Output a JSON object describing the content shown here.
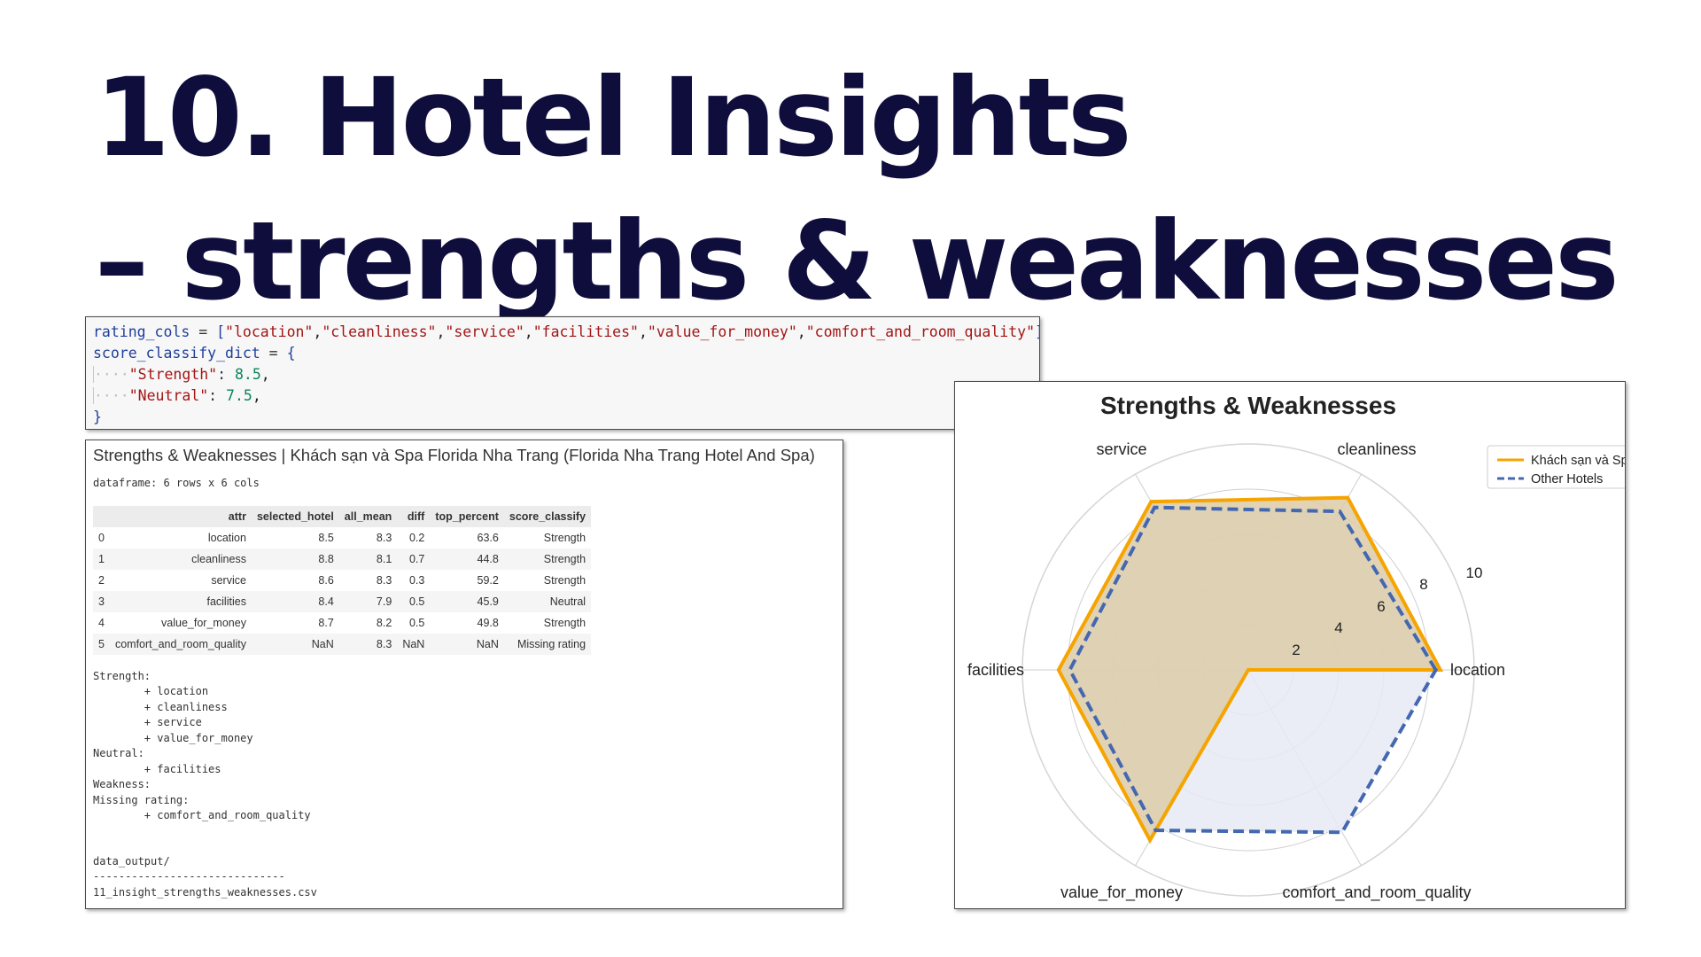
{
  "slide": {
    "title_line1": "10. Hotel Insights",
    "title_line2": "– strengths & weaknesses"
  },
  "code": {
    "line1": {
      "var": "rating_cols",
      "op": " = ",
      "open": "[",
      "items": [
        "\"location\"",
        "\"cleanliness\"",
        "\"service\"",
        "\"facilities\"",
        "\"value_for_money\"",
        "\"comfort_and_room_quality\""
      ],
      "close": "]"
    },
    "line2": {
      "var": "score_classify_dict",
      "op": " = ",
      "open": "{"
    },
    "line3": {
      "key": "\"Strength\"",
      "sep": ": ",
      "value": "8.5",
      "end": ","
    },
    "line4": {
      "key": "\"Neutral\"",
      "sep": ": ",
      "value": "7.5",
      "end": ","
    },
    "line5": {
      "close": "}"
    }
  },
  "output": {
    "heading": "Strengths & Weaknesses | Khách sạn và Spa Florida Nha Trang (Florida Nha Trang Hotel And Spa)",
    "df_info": "dataframe: 6 rows x 6 cols",
    "columns": [
      "",
      "attr",
      "selected_hotel",
      "all_mean",
      "diff",
      "top_percent",
      "score_classify"
    ],
    "rows": [
      [
        "0",
        "location",
        "8.5",
        "8.3",
        "0.2",
        "63.6",
        "Strength"
      ],
      [
        "1",
        "cleanliness",
        "8.8",
        "8.1",
        "0.7",
        "44.8",
        "Strength"
      ],
      [
        "2",
        "service",
        "8.6",
        "8.3",
        "0.3",
        "59.2",
        "Strength"
      ],
      [
        "3",
        "facilities",
        "8.4",
        "7.9",
        "0.5",
        "45.9",
        "Neutral"
      ],
      [
        "4",
        "value_for_money",
        "8.7",
        "8.2",
        "0.5",
        "49.8",
        "Strength"
      ],
      [
        "5",
        "comfort_and_room_quality",
        "NaN",
        "8.3",
        "NaN",
        "NaN",
        "Missing rating"
      ]
    ],
    "summary_lines": [
      "Strength:",
      "        + location",
      "        + cleanliness",
      "        + service",
      "        + value_for_money",
      "Neutral:",
      "        + facilities",
      "Weakness:",
      "Missing rating:",
      "        + comfort_and_room_quality"
    ],
    "file_lines": [
      "data_output/",
      "------------------------------",
      "11_insight_strengths_weaknesses.csv"
    ]
  },
  "chart_data": {
    "type": "radar",
    "title": "Strengths & Weaknesses",
    "categories": [
      "location",
      "cleanliness",
      "service",
      "facilities",
      "value_for_money",
      "comfort_and_room_quality"
    ],
    "radial_ticks": [
      2,
      4,
      6,
      8,
      10
    ],
    "rlim": [
      0,
      10
    ],
    "grid": true,
    "legend_placement": "top-right",
    "series": [
      {
        "name": "Khách sạn và Sp",
        "values": [
          8.5,
          8.8,
          8.6,
          8.4,
          8.7,
          0
        ],
        "color": "#f5a400",
        "style": "solid",
        "fill": "#ddcba7"
      },
      {
        "name": "Other Hotels",
        "values": [
          8.3,
          8.1,
          8.3,
          7.9,
          8.2,
          8.3
        ],
        "color": "#4468b0",
        "style": "dashed",
        "fill": "#e6eaf5"
      }
    ]
  }
}
